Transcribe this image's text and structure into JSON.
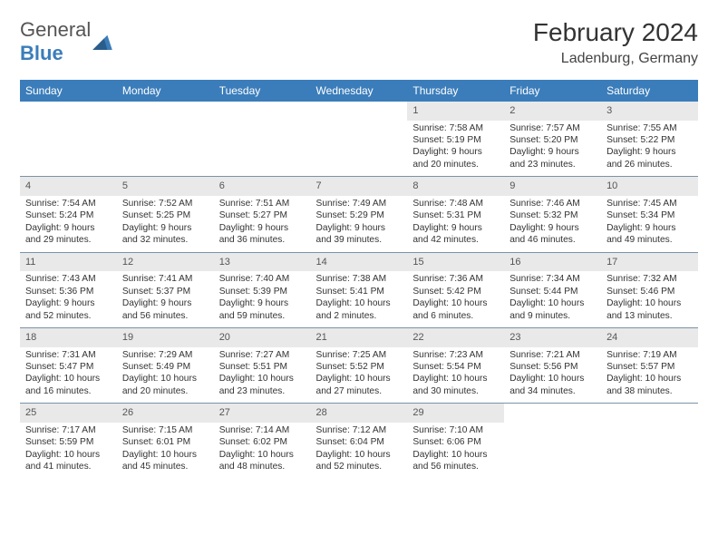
{
  "logo": {
    "general": "General",
    "blue": "Blue"
  },
  "title": "February 2024",
  "location": "Ladenburg, Germany",
  "colors": {
    "header_bg": "#3b7dba",
    "daynum_bg": "#e9e9e9",
    "border": "#7a93a8"
  },
  "weekdays": [
    "Sunday",
    "Monday",
    "Tuesday",
    "Wednesday",
    "Thursday",
    "Friday",
    "Saturday"
  ],
  "grid": [
    [
      {
        "n": "",
        "lines": []
      },
      {
        "n": "",
        "lines": []
      },
      {
        "n": "",
        "lines": []
      },
      {
        "n": "",
        "lines": []
      },
      {
        "n": "1",
        "lines": [
          "Sunrise: 7:58 AM",
          "Sunset: 5:19 PM",
          "Daylight: 9 hours and 20 minutes."
        ]
      },
      {
        "n": "2",
        "lines": [
          "Sunrise: 7:57 AM",
          "Sunset: 5:20 PM",
          "Daylight: 9 hours and 23 minutes."
        ]
      },
      {
        "n": "3",
        "lines": [
          "Sunrise: 7:55 AM",
          "Sunset: 5:22 PM",
          "Daylight: 9 hours and 26 minutes."
        ]
      }
    ],
    [
      {
        "n": "4",
        "lines": [
          "Sunrise: 7:54 AM",
          "Sunset: 5:24 PM",
          "Daylight: 9 hours and 29 minutes."
        ]
      },
      {
        "n": "5",
        "lines": [
          "Sunrise: 7:52 AM",
          "Sunset: 5:25 PM",
          "Daylight: 9 hours and 32 minutes."
        ]
      },
      {
        "n": "6",
        "lines": [
          "Sunrise: 7:51 AM",
          "Sunset: 5:27 PM",
          "Daylight: 9 hours and 36 minutes."
        ]
      },
      {
        "n": "7",
        "lines": [
          "Sunrise: 7:49 AM",
          "Sunset: 5:29 PM",
          "Daylight: 9 hours and 39 minutes."
        ]
      },
      {
        "n": "8",
        "lines": [
          "Sunrise: 7:48 AM",
          "Sunset: 5:31 PM",
          "Daylight: 9 hours and 42 minutes."
        ]
      },
      {
        "n": "9",
        "lines": [
          "Sunrise: 7:46 AM",
          "Sunset: 5:32 PM",
          "Daylight: 9 hours and 46 minutes."
        ]
      },
      {
        "n": "10",
        "lines": [
          "Sunrise: 7:45 AM",
          "Sunset: 5:34 PM",
          "Daylight: 9 hours and 49 minutes."
        ]
      }
    ],
    [
      {
        "n": "11",
        "lines": [
          "Sunrise: 7:43 AM",
          "Sunset: 5:36 PM",
          "Daylight: 9 hours and 52 minutes."
        ]
      },
      {
        "n": "12",
        "lines": [
          "Sunrise: 7:41 AM",
          "Sunset: 5:37 PM",
          "Daylight: 9 hours and 56 minutes."
        ]
      },
      {
        "n": "13",
        "lines": [
          "Sunrise: 7:40 AM",
          "Sunset: 5:39 PM",
          "Daylight: 9 hours and 59 minutes."
        ]
      },
      {
        "n": "14",
        "lines": [
          "Sunrise: 7:38 AM",
          "Sunset: 5:41 PM",
          "Daylight: 10 hours and 2 minutes."
        ]
      },
      {
        "n": "15",
        "lines": [
          "Sunrise: 7:36 AM",
          "Sunset: 5:42 PM",
          "Daylight: 10 hours and 6 minutes."
        ]
      },
      {
        "n": "16",
        "lines": [
          "Sunrise: 7:34 AM",
          "Sunset: 5:44 PM",
          "Daylight: 10 hours and 9 minutes."
        ]
      },
      {
        "n": "17",
        "lines": [
          "Sunrise: 7:32 AM",
          "Sunset: 5:46 PM",
          "Daylight: 10 hours and 13 minutes."
        ]
      }
    ],
    [
      {
        "n": "18",
        "lines": [
          "Sunrise: 7:31 AM",
          "Sunset: 5:47 PM",
          "Daylight: 10 hours and 16 minutes."
        ]
      },
      {
        "n": "19",
        "lines": [
          "Sunrise: 7:29 AM",
          "Sunset: 5:49 PM",
          "Daylight: 10 hours and 20 minutes."
        ]
      },
      {
        "n": "20",
        "lines": [
          "Sunrise: 7:27 AM",
          "Sunset: 5:51 PM",
          "Daylight: 10 hours and 23 minutes."
        ]
      },
      {
        "n": "21",
        "lines": [
          "Sunrise: 7:25 AM",
          "Sunset: 5:52 PM",
          "Daylight: 10 hours and 27 minutes."
        ]
      },
      {
        "n": "22",
        "lines": [
          "Sunrise: 7:23 AM",
          "Sunset: 5:54 PM",
          "Daylight: 10 hours and 30 minutes."
        ]
      },
      {
        "n": "23",
        "lines": [
          "Sunrise: 7:21 AM",
          "Sunset: 5:56 PM",
          "Daylight: 10 hours and 34 minutes."
        ]
      },
      {
        "n": "24",
        "lines": [
          "Sunrise: 7:19 AM",
          "Sunset: 5:57 PM",
          "Daylight: 10 hours and 38 minutes."
        ]
      }
    ],
    [
      {
        "n": "25",
        "lines": [
          "Sunrise: 7:17 AM",
          "Sunset: 5:59 PM",
          "Daylight: 10 hours and 41 minutes."
        ]
      },
      {
        "n": "26",
        "lines": [
          "Sunrise: 7:15 AM",
          "Sunset: 6:01 PM",
          "Daylight: 10 hours and 45 minutes."
        ]
      },
      {
        "n": "27",
        "lines": [
          "Sunrise: 7:14 AM",
          "Sunset: 6:02 PM",
          "Daylight: 10 hours and 48 minutes."
        ]
      },
      {
        "n": "28",
        "lines": [
          "Sunrise: 7:12 AM",
          "Sunset: 6:04 PM",
          "Daylight: 10 hours and 52 minutes."
        ]
      },
      {
        "n": "29",
        "lines": [
          "Sunrise: 7:10 AM",
          "Sunset: 6:06 PM",
          "Daylight: 10 hours and 56 minutes."
        ]
      },
      {
        "n": "",
        "lines": []
      },
      {
        "n": "",
        "lines": []
      }
    ]
  ]
}
